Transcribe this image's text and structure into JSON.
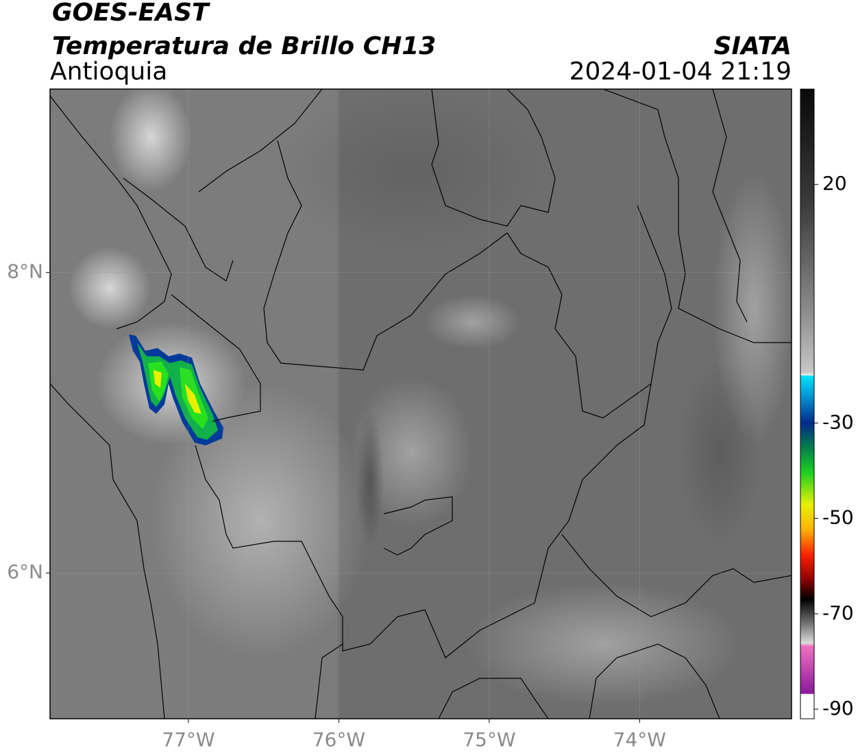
{
  "header": {
    "title": "GOES-EAST",
    "subtitle": "Temperatura de Brillo CH13",
    "region": "Antioquia",
    "source": "SIATA",
    "datetime": "2024-01-04 21:19"
  },
  "map": {
    "xlim": [
      -77.92,
      -72.99
    ],
    "ylim": [
      5.03,
      9.22
    ],
    "xticks": [
      {
        "value": -77,
        "label": "77°W"
      },
      {
        "value": -76,
        "label": "76°W"
      },
      {
        "value": -75,
        "label": "75°W"
      },
      {
        "value": -74,
        "label": "74°W"
      }
    ],
    "yticks": [
      {
        "value": 8,
        "label": "8°N"
      },
      {
        "value": 6,
        "label": "6°N"
      }
    ],
    "grid": true
  },
  "colorbar": {
    "lim": [
      -92,
      40
    ],
    "ticks": [
      20,
      -30,
      -50,
      -70,
      -90
    ]
  }
}
